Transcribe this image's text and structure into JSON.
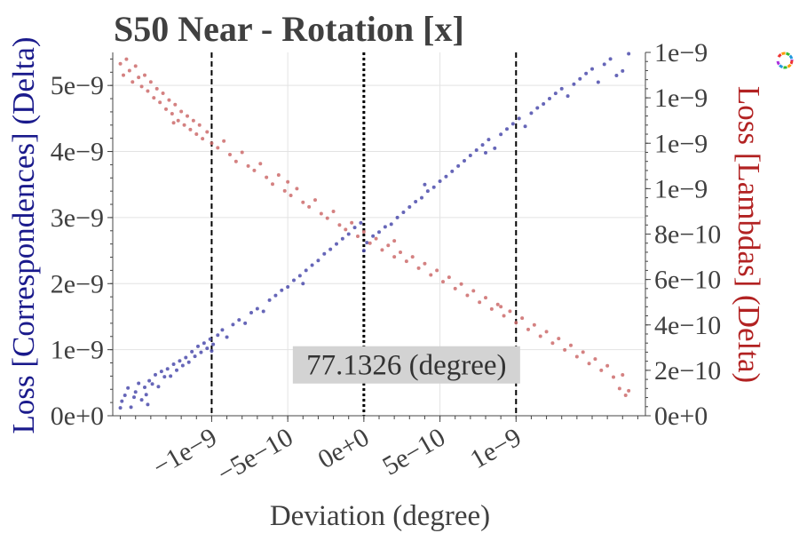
{
  "chart_data": {
    "type": "scatter",
    "title": "S50 Near - Rotation [x]",
    "xlabel": "Deviation (degree)",
    "ylabel_left": "Loss [Correspondences] (Delta)",
    "ylabel_right": "Loss [Lambdas] (Delta)",
    "x_range": [
      -1.65e-09,
      1.85e-09
    ],
    "y_left_range": [
      0,
      5.5e-09
    ],
    "y_right_range": [
      0,
      1.6e-09
    ],
    "x_ticks": [
      {
        "value": -1e-09,
        "label": "−1e−9"
      },
      {
        "value": -5e-10,
        "label": "−5e−10"
      },
      {
        "value": 0,
        "label": "0e+0"
      },
      {
        "value": 5e-10,
        "label": "5e−10"
      },
      {
        "value": 1e-09,
        "label": "1e−9"
      }
    ],
    "y_left_ticks": [
      {
        "value": 0,
        "label": "0e+0"
      },
      {
        "value": 1e-09,
        "label": "1e−9"
      },
      {
        "value": 2e-09,
        "label": "2e−9"
      },
      {
        "value": 3e-09,
        "label": "3e−9"
      },
      {
        "value": 4e-09,
        "label": "4e−9"
      },
      {
        "value": 5e-09,
        "label": "5e−9"
      }
    ],
    "y_right_ticks": [
      {
        "value": 0,
        "label": "0e+0"
      },
      {
        "value": 2e-10,
        "label": "2e−10"
      },
      {
        "value": 4e-10,
        "label": "4e−10"
      },
      {
        "value": 6e-10,
        "label": "6e−10"
      },
      {
        "value": 8e-10,
        "label": "8e−10"
      },
      {
        "value": 1e-09,
        "label": "1e−9"
      },
      {
        "value": 1.2e-09,
        "label": "1e−9"
      },
      {
        "value": 1.4e-09,
        "label": "1e−9"
      },
      {
        "value": 1.6e-09,
        "label": "1e−9"
      }
    ],
    "vlines": [
      {
        "x": -1e-09,
        "style": "dashed"
      },
      {
        "x": 0,
        "style": "dotted"
      },
      {
        "x": 1e-09,
        "style": "dashed"
      }
    ],
    "annotation": {
      "text": "77.1326 (degree)",
      "x": 2.8e-10,
      "y": 7.7e-10
    },
    "grid": true,
    "series": [
      {
        "axis": "left",
        "color": "#4b4bab",
        "points": [
          [
            -1.6e-09,
            1.2e-10
          ],
          [
            -1.59e-09,
            2.2e-10
          ],
          [
            -1.57e-09,
            3.1e-10
          ],
          [
            -1.55e-09,
            4.2e-10
          ],
          [
            -1.53e-09,
            1.3e-10
          ],
          [
            -1.51e-09,
            2.8e-10
          ],
          [
            -1.5e-09,
            3.6e-10
          ],
          [
            -1.48e-09,
            4.9e-10
          ],
          [
            -1.46e-09,
            2.4e-10
          ],
          [
            -1.44e-09,
            4.3e-10
          ],
          [
            -1.43e-09,
            3.2e-10
          ],
          [
            -1.41e-09,
            5.3e-10
          ],
          [
            -1.39e-09,
            4.8e-10
          ],
          [
            -1.37e-09,
            6.2e-10
          ],
          [
            -1.35e-09,
            4.4e-10
          ],
          [
            -1.33e-09,
            6.7e-10
          ],
          [
            -1.31e-09,
            5.9e-10
          ],
          [
            -1.29e-09,
            7.1e-10
          ],
          [
            -1.27e-09,
            6e-10
          ],
          [
            -1.25e-09,
            7.8e-10
          ],
          [
            -1.23e-09,
            6.9e-10
          ],
          [
            -1.21e-09,
            8.3e-10
          ],
          [
            -1.19e-09,
            7.6e-10
          ],
          [
            -1.17e-09,
            8.8e-10
          ],
          [
            -1.15e-09,
            8.1e-10
          ],
          [
            -1.13e-09,
            9.7e-10
          ],
          [
            -1.11e-09,
            9e-10
          ],
          [
            -1.09e-09,
            1.05e-09
          ],
          [
            -1.07e-09,
            9.6e-10
          ],
          [
            -1.05e-09,
            1.1e-09
          ],
          [
            -1.03e-09,
            1.02e-09
          ],
          [
            -1.01e-09,
            1.16e-09
          ],
          [
            -9.9e-10,
            1.08e-09
          ],
          [
            -9.6e-10,
            1.22e-09
          ],
          [
            -9.3e-10,
            1.3e-09
          ],
          [
            -9e-10,
            1.19e-09
          ],
          [
            -8.6e-10,
            1.38e-09
          ],
          [
            -8.2e-10,
            1.45e-09
          ],
          [
            -7.8e-10,
            1.4e-09
          ],
          [
            -7.4e-10,
            1.56e-09
          ],
          [
            -7e-10,
            1.62e-09
          ],
          [
            -6.6e-10,
            1.58e-09
          ],
          [
            -6.2e-10,
            1.75e-09
          ],
          [
            -5.8e-10,
            1.82e-09
          ],
          [
            -5.4e-10,
            1.9e-09
          ],
          [
            -5e-10,
            1.95e-09
          ],
          [
            -4.6e-10,
            2.05e-09
          ],
          [
            -4.2e-10,
            2.12e-09
          ],
          [
            -3.8e-10,
            2.2e-09
          ],
          [
            -3.4e-10,
            2.28e-09
          ],
          [
            -3e-10,
            2.35e-09
          ],
          [
            -2.6e-10,
            2.45e-09
          ],
          [
            -2.2e-10,
            2.52e-09
          ],
          [
            -1.8e-10,
            2.6e-09
          ],
          [
            -1.4e-10,
            2.68e-09
          ],
          [
            -1e-10,
            2.75e-09
          ],
          [
            -6e-11,
            2.85e-09
          ],
          [
            -2e-11,
            2.92e-09
          ],
          [
            2e-11,
            2.62e-09
          ],
          [
            6e-11,
            2.72e-09
          ],
          [
            1e-10,
            2.78e-09
          ],
          [
            1.4e-10,
            2.86e-09
          ],
          [
            1.8e-10,
            2.9e-09
          ],
          [
            2.2e-10,
            3e-09
          ],
          [
            2.6e-10,
            3.08e-09
          ],
          [
            3e-10,
            3.16e-09
          ],
          [
            3.4e-10,
            3.24e-09
          ],
          [
            3.8e-10,
            3.3e-09
          ],
          [
            4.2e-10,
            3.4e-09
          ],
          [
            4.6e-10,
            3.46e-09
          ],
          [
            5e-10,
            3.55e-09
          ],
          [
            5.4e-10,
            3.62e-09
          ],
          [
            5.8e-10,
            3.7e-09
          ],
          [
            6.2e-10,
            3.78e-09
          ],
          [
            6.6e-10,
            3.86e-09
          ],
          [
            7e-10,
            3.94e-09
          ],
          [
            7.4e-10,
            4.02e-09
          ],
          [
            7.8e-10,
            4.1e-09
          ],
          [
            8.2e-10,
            4.18e-09
          ],
          [
            8.6e-10,
            4.05e-09
          ],
          [
            9e-10,
            4.26e-09
          ],
          [
            9.4e-10,
            4.34e-09
          ],
          [
            9.8e-10,
            4.42e-09
          ],
          [
            1.02e-09,
            4.5e-09
          ],
          [
            1.06e-09,
            4.38e-09
          ],
          [
            1.1e-09,
            4.58e-09
          ],
          [
            1.14e-09,
            4.66e-09
          ],
          [
            1.18e-09,
            4.72e-09
          ],
          [
            1.22e-09,
            4.8e-09
          ],
          [
            1.26e-09,
            4.88e-09
          ],
          [
            1.3e-09,
            4.95e-09
          ],
          [
            1.34e-09,
            4.84e-09
          ],
          [
            1.38e-09,
            5.02e-09
          ],
          [
            1.42e-09,
            5.1e-09
          ],
          [
            1.46e-09,
            5.18e-09
          ],
          [
            1.5e-09,
            5.25e-09
          ],
          [
            1.54e-09,
            5.05e-09
          ],
          [
            1.58e-09,
            5.32e-09
          ],
          [
            1.62e-09,
            5.4e-09
          ],
          [
            1.66e-09,
            5.15e-09
          ],
          [
            1.7e-09,
            5.22e-09
          ],
          [
            1.74e-09,
            5.48e-09
          ],
          [
            -1.42e-09,
            1.7e-10
          ],
          [
            -1e-09,
            9.8e-10
          ],
          [
            -4e-10,
            2e-09
          ],
          [
            0.0,
            2.5e-09
          ],
          [
            4e-10,
            3.5e-09
          ],
          [
            8e-10,
            3.98e-09
          ]
        ]
      },
      {
        "axis": "right",
        "color": "#cd6b6b",
        "points": [
          [
            -1.6e-09,
            1.55e-09
          ],
          [
            -1.58e-09,
            1.5e-09
          ],
          [
            -1.56e-09,
            1.57e-09
          ],
          [
            -1.54e-09,
            1.52e-09
          ],
          [
            -1.52e-09,
            1.47e-09
          ],
          [
            -1.5e-09,
            1.54e-09
          ],
          [
            -1.48e-09,
            1.49e-09
          ],
          [
            -1.46e-09,
            1.45e-09
          ],
          [
            -1.44e-09,
            1.5e-09
          ],
          [
            -1.42e-09,
            1.43e-09
          ],
          [
            -1.4e-09,
            1.47e-09
          ],
          [
            -1.38e-09,
            1.4e-09
          ],
          [
            -1.36e-09,
            1.44e-09
          ],
          [
            -1.34e-09,
            1.38e-09
          ],
          [
            -1.32e-09,
            1.42e-09
          ],
          [
            -1.3e-09,
            1.35e-09
          ],
          [
            -1.28e-09,
            1.39e-09
          ],
          [
            -1.26e-09,
            1.33e-09
          ],
          [
            -1.24e-09,
            1.37e-09
          ],
          [
            -1.22e-09,
            1.3e-09
          ],
          [
            -1.2e-09,
            1.34e-09
          ],
          [
            -1.18e-09,
            1.28e-09
          ],
          [
            -1.16e-09,
            1.32e-09
          ],
          [
            -1.14e-09,
            1.26e-09
          ],
          [
            -1.12e-09,
            1.3e-09
          ],
          [
            -1.1e-09,
            1.24e-09
          ],
          [
            -1.08e-09,
            1.28e-09
          ],
          [
            -1.06e-09,
            1.22e-09
          ],
          [
            -1.03e-09,
            1.25e-09
          ],
          [
            -1e-09,
            1.2e-09
          ],
          [
            -9.6e-10,
            1.18e-09
          ],
          [
            -9.2e-10,
            1.21e-09
          ],
          [
            -8.8e-10,
            1.15e-09
          ],
          [
            -8.4e-10,
            1.12e-09
          ],
          [
            -8e-10,
            1.16e-09
          ],
          [
            -7.6e-10,
            1.1e-09
          ],
          [
            -7.2e-10,
            1.08e-09
          ],
          [
            -6.8e-10,
            1.11e-09
          ],
          [
            -6.4e-10,
            1.05e-09
          ],
          [
            -6e-10,
            1.02e-09
          ],
          [
            -5.6e-10,
            1.06e-09
          ],
          [
            -5.2e-10,
            9.9e-10
          ],
          [
            -4.8e-10,
            9.7e-10
          ],
          [
            -4.4e-10,
            1e-09
          ],
          [
            -4e-10,
            9.4e-10
          ],
          [
            -3.6e-10,
            9.2e-10
          ],
          [
            -3.2e-10,
            9.5e-10
          ],
          [
            -2.8e-10,
            8.9e-10
          ],
          [
            -2.4e-10,
            8.7e-10
          ],
          [
            -2e-10,
            9e-10
          ],
          [
            -1.6e-10,
            8.4e-10
          ],
          [
            -1.2e-10,
            8.2e-10
          ],
          [
            -8e-11,
            8.5e-10
          ],
          [
            -4e-11,
            7.9e-10
          ],
          [
            0.0,
            8.1e-10
          ],
          [
            4e-11,
            7.6e-10
          ],
          [
            8e-11,
            7.8e-10
          ],
          [
            1.2e-10,
            7.3e-10
          ],
          [
            1.6e-10,
            7.5e-10
          ],
          [
            2e-10,
            7e-10
          ],
          [
            2.4e-10,
            7.2e-10
          ],
          [
            2.8e-10,
            6.8e-10
          ],
          [
            3.2e-10,
            7e-10
          ],
          [
            3.6e-10,
            6.5e-10
          ],
          [
            4e-10,
            6.7e-10
          ],
          [
            4.4e-10,
            6.2e-10
          ],
          [
            4.8e-10,
            6.4e-10
          ],
          [
            5.2e-10,
            5.9e-10
          ],
          [
            5.6e-10,
            6.1e-10
          ],
          [
            6e-10,
            5.6e-10
          ],
          [
            6.4e-10,
            5.8e-10
          ],
          [
            6.8e-10,
            5.3e-10
          ],
          [
            7.2e-10,
            5.5e-10
          ],
          [
            7.6e-10,
            5e-10
          ],
          [
            8e-10,
            5.2e-10
          ],
          [
            8.4e-10,
            4.7e-10
          ],
          [
            8.8e-10,
            4.9e-10
          ],
          [
            9.2e-10,
            4.4e-10
          ],
          [
            9.6e-10,
            4.6e-10
          ],
          [
            1e-09,
            4.1e-10
          ],
          [
            1.04e-09,
            4.3e-10
          ],
          [
            1.08e-09,
            3.8e-10
          ],
          [
            1.12e-09,
            4e-10
          ],
          [
            1.16e-09,
            3.5e-10
          ],
          [
            1.2e-09,
            3.7e-10
          ],
          [
            1.24e-09,
            3.2e-10
          ],
          [
            1.28e-09,
            3.4e-10
          ],
          [
            1.32e-09,
            2.9e-10
          ],
          [
            1.36e-09,
            3.1e-10
          ],
          [
            1.4e-09,
            2.6e-10
          ],
          [
            1.44e-09,
            2.8e-10
          ],
          [
            1.48e-09,
            2.3e-10
          ],
          [
            1.52e-09,
            2.5e-10
          ],
          [
            1.56e-09,
            2e-10
          ],
          [
            1.6e-09,
            2.2e-10
          ],
          [
            1.64e-09,
            1.7e-10
          ],
          [
            1.68e-09,
            1.2e-10
          ],
          [
            1.7e-09,
            1.8e-10
          ],
          [
            1.72e-09,
            9e-11
          ],
          [
            1.74e-09,
            1.1e-10
          ],
          [
            -1.25e-09,
            1.29e-09
          ],
          [
            -5e-10,
            1.03e-09
          ],
          [
            2e-10,
            7.7e-10
          ],
          [
            9e-10,
            4.8e-10
          ]
        ]
      }
    ]
  },
  "logo": {
    "name": "plot-logo-icon"
  }
}
